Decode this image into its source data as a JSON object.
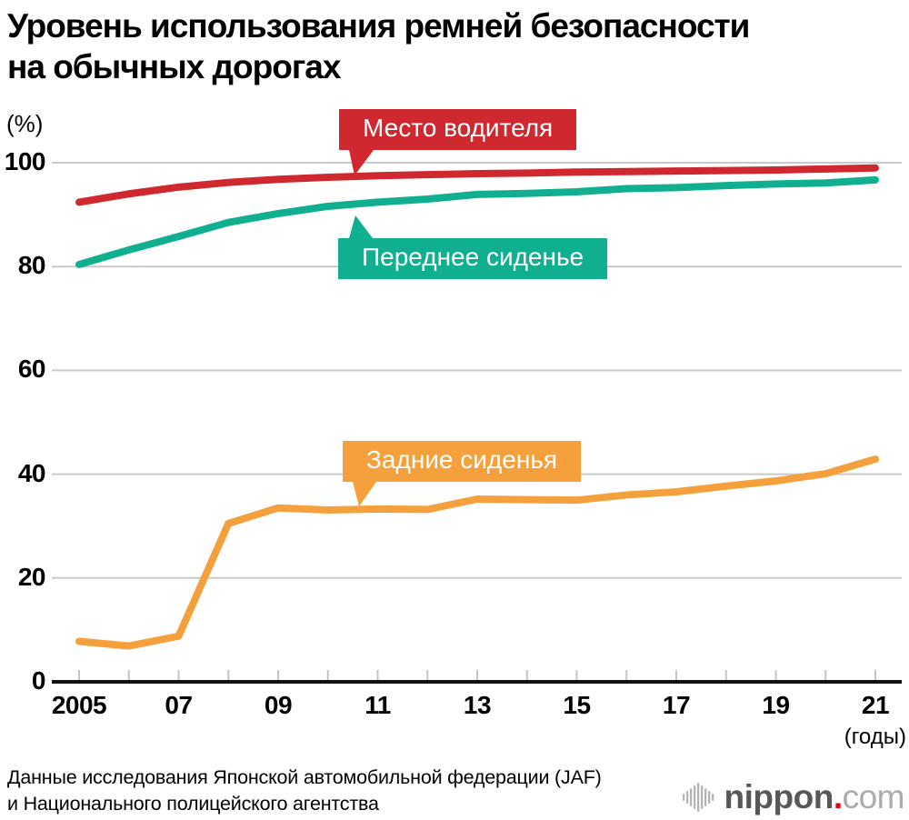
{
  "title": {
    "line1": "Уровень использования ремней безопасности",
    "line2": "на обычных дорогах"
  },
  "y_axis": {
    "unit_label": "(%)",
    "ticks": [
      0,
      20,
      40,
      60,
      80,
      100
    ]
  },
  "x_axis": {
    "unit_label": "(годы)",
    "tick_labels": [
      {
        "year": 2005,
        "label": "2005"
      },
      {
        "year": 2007,
        "label": "07"
      },
      {
        "year": 2009,
        "label": "09"
      },
      {
        "year": 2011,
        "label": "11"
      },
      {
        "year": 2013,
        "label": "13"
      },
      {
        "year": 2015,
        "label": "15"
      },
      {
        "year": 2017,
        "label": "17"
      },
      {
        "year": 2019,
        "label": "19"
      },
      {
        "year": 2021,
        "label": "21"
      }
    ]
  },
  "chart_data": {
    "type": "line",
    "title": "Уровень использования ремней безопасности на обычных дорогах",
    "ylabel": "(%)",
    "xlabel": "(годы)",
    "ylim": [
      0,
      100
    ],
    "grid": true,
    "legend_position": "callout-labels-on-lines",
    "x": [
      2005,
      2006,
      2007,
      2008,
      2009,
      2010,
      2011,
      2012,
      2013,
      2014,
      2015,
      2016,
      2017,
      2018,
      2019,
      2020,
      2021
    ],
    "series": [
      {
        "name": "Место водителя",
        "color": "#d0282f",
        "values": [
          92.4,
          94.0,
          95.3,
          96.2,
          96.8,
          97.2,
          97.5,
          97.7,
          97.9,
          98.0,
          98.2,
          98.3,
          98.4,
          98.5,
          98.6,
          98.8,
          99.0
        ]
      },
      {
        "name": "Переднее сиденье",
        "color": "#10af90",
        "values": [
          80.4,
          83.2,
          85.8,
          88.5,
          90.2,
          91.6,
          92.4,
          93.0,
          93.9,
          94.1,
          94.4,
          95.0,
          95.2,
          95.6,
          95.9,
          96.1,
          96.7
        ]
      },
      {
        "name": "Задние сиденья",
        "color": "#f4a03c",
        "values": [
          7.8,
          6.9,
          8.8,
          30.5,
          33.5,
          33.1,
          33.3,
          33.2,
          35.2,
          35.1,
          35.0,
          36.0,
          36.6,
          37.7,
          38.7,
          40.1,
          42.9
        ]
      }
    ]
  },
  "colors": {
    "grid": "#c9c9c9",
    "tick": "#c4c4c4",
    "axis": "#111111",
    "background": "#ffffff"
  },
  "source": {
    "line1": "Данные исследования Японской автомобильной федерации (JAF)",
    "line2": "и Национального полицейского агентства"
  },
  "logo": {
    "name": "nippon",
    "dot": ".",
    "tld": "com"
  }
}
